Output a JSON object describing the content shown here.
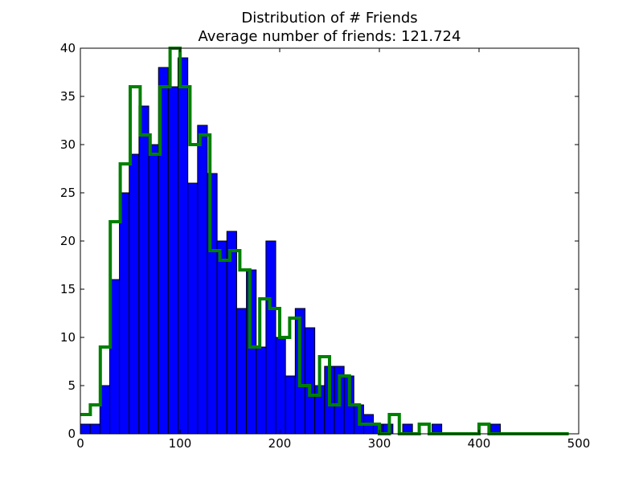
{
  "chart_data": {
    "type": "bar",
    "title": "Distribution of # Friends",
    "subtitle": "Average number of friends: 121.724",
    "xlabel": "",
    "ylabel": "",
    "xlim": [
      0,
      500
    ],
    "ylim": [
      0,
      40
    ],
    "x_ticks": [
      0,
      100,
      200,
      300,
      400,
      500
    ],
    "y_ticks": [
      0,
      5,
      10,
      15,
      20,
      25,
      30,
      35,
      40
    ],
    "grid": false,
    "legend": "none",
    "colors": {
      "bars": "#0000ff",
      "step": "#008000"
    },
    "histogram": {
      "bin_edges": [
        0,
        9.8,
        19.6,
        29.4,
        39.2,
        49,
        58.8,
        68.6,
        78.4,
        88.2,
        98,
        107.8,
        117.6,
        127.4,
        137.2,
        147,
        156.8,
        166.6,
        176.4,
        186.2,
        196,
        205.8,
        215.6,
        225.4,
        235.2,
        245,
        254.8,
        264.6,
        274.4,
        284.2,
        294,
        303.8,
        313.6,
        323.4,
        333.2,
        343,
        352.8,
        362.6,
        372.4,
        382.2,
        392,
        401.8,
        411.6,
        421.4,
        431.2,
        441,
        450.8,
        460.6,
        470.4,
        480.2,
        490
      ],
      "counts": [
        1,
        1,
        5,
        16,
        25,
        29,
        34,
        30,
        38,
        36,
        39,
        26,
        32,
        27,
        20,
        21,
        13,
        17,
        9,
        20,
        10,
        6,
        13,
        11,
        5,
        7,
        7,
        6,
        3,
        2,
        1,
        1,
        0,
        1,
        0,
        0,
        1,
        0,
        0,
        0,
        0,
        0,
        1,
        0,
        0,
        0,
        0,
        0,
        0,
        0
      ]
    },
    "step": {
      "bin_edges": [
        0,
        10,
        20,
        30,
        40,
        50,
        60,
        70,
        80,
        90,
        100,
        110,
        120,
        130,
        140,
        150,
        160,
        170,
        180,
        190,
        200,
        210,
        220,
        230,
        240,
        250,
        260,
        270,
        280,
        290,
        300,
        310,
        320,
        330,
        340,
        350,
        360,
        370,
        380,
        390,
        400,
        410,
        420,
        430,
        440,
        450,
        460,
        470,
        480,
        490
      ],
      "counts": [
        2,
        3,
        9,
        22,
        28,
        36,
        31,
        29,
        36,
        40,
        36,
        30,
        31,
        19,
        18,
        19,
        17,
        9,
        14,
        13,
        10,
        12,
        5,
        4,
        8,
        3,
        6,
        3,
        1,
        1,
        0,
        2,
        0,
        0,
        1,
        0,
        0,
        0,
        0,
        0,
        1,
        0,
        0,
        0,
        0,
        0,
        0,
        0,
        0
      ]
    }
  }
}
